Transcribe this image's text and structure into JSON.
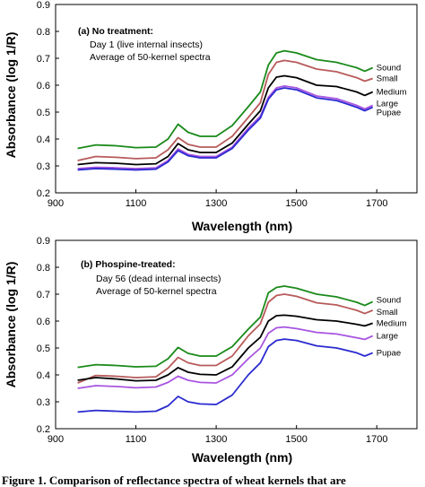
{
  "chart_data": [
    {
      "type": "line",
      "xlim": [
        900,
        1800
      ],
      "ylim": [
        0.2,
        0.9
      ],
      "xticks": [
        "900",
        "1100",
        "1300",
        "1500",
        "1700"
      ],
      "yticks": [
        "0.2",
        "0.3",
        "0.4",
        "0.5",
        "0.6",
        "0.7",
        "0.8",
        "0.9"
      ],
      "xlabel": "Wavelength (nm)",
      "ylabel": "Absorbance (log 1/R)",
      "annotation_title": "(a) No treatment:",
      "annotation_lines": [
        "Day 1 (live internal insects)",
        "Average of 50-kernel spectra"
      ],
      "series": [
        {
          "name": "Sound",
          "color": "#1a8a1a",
          "x": [
            955,
            1000,
            1050,
            1100,
            1150,
            1180,
            1205,
            1230,
            1260,
            1300,
            1340,
            1380,
            1410,
            1430,
            1450,
            1470,
            1500,
            1550,
            1600,
            1650,
            1670,
            1690
          ],
          "y": [
            0.365,
            0.378,
            0.375,
            0.368,
            0.37,
            0.4,
            0.455,
            0.425,
            0.41,
            0.41,
            0.45,
            0.52,
            0.575,
            0.675,
            0.72,
            0.728,
            0.72,
            0.695,
            0.685,
            0.665,
            0.652,
            0.665
          ]
        },
        {
          "name": "Small",
          "color": "#b85a5a",
          "x": [
            955,
            1000,
            1050,
            1100,
            1150,
            1180,
            1205,
            1230,
            1260,
            1300,
            1340,
            1380,
            1410,
            1430,
            1450,
            1470,
            1500,
            1550,
            1600,
            1650,
            1670,
            1690
          ],
          "y": [
            0.32,
            0.335,
            0.332,
            0.327,
            0.33,
            0.36,
            0.405,
            0.38,
            0.37,
            0.37,
            0.41,
            0.48,
            0.535,
            0.64,
            0.685,
            0.692,
            0.685,
            0.66,
            0.65,
            0.628,
            0.615,
            0.625
          ]
        },
        {
          "name": "Medium",
          "color": "#000000",
          "x": [
            955,
            1000,
            1050,
            1100,
            1150,
            1180,
            1205,
            1230,
            1260,
            1300,
            1340,
            1380,
            1410,
            1430,
            1450,
            1470,
            1500,
            1550,
            1600,
            1650,
            1670,
            1690
          ],
          "y": [
            0.305,
            0.312,
            0.31,
            0.305,
            0.308,
            0.335,
            0.383,
            0.36,
            0.35,
            0.35,
            0.385,
            0.455,
            0.505,
            0.59,
            0.63,
            0.635,
            0.628,
            0.6,
            0.595,
            0.575,
            0.562,
            0.575
          ]
        },
        {
          "name": "Large",
          "color": "#a855e0",
          "x": [
            955,
            1000,
            1050,
            1100,
            1150,
            1180,
            1205,
            1230,
            1260,
            1300,
            1340,
            1380,
            1410,
            1430,
            1450,
            1470,
            1500,
            1550,
            1600,
            1650,
            1670,
            1690
          ],
          "y": [
            0.29,
            0.295,
            0.293,
            0.29,
            0.293,
            0.32,
            0.363,
            0.343,
            0.335,
            0.335,
            0.37,
            0.44,
            0.485,
            0.555,
            0.59,
            0.597,
            0.59,
            0.56,
            0.55,
            0.525,
            0.512,
            0.525
          ]
        },
        {
          "name": "Pupae",
          "color": "#2a2ad0",
          "x": [
            955,
            1000,
            1050,
            1100,
            1150,
            1180,
            1205,
            1230,
            1260,
            1300,
            1340,
            1380,
            1410,
            1430,
            1450,
            1470,
            1500,
            1550,
            1600,
            1650,
            1670,
            1690
          ],
          "y": [
            0.285,
            0.29,
            0.288,
            0.285,
            0.288,
            0.315,
            0.357,
            0.338,
            0.33,
            0.33,
            0.365,
            0.433,
            0.478,
            0.548,
            0.583,
            0.59,
            0.583,
            0.553,
            0.543,
            0.518,
            0.505,
            0.518
          ]
        }
      ]
    },
    {
      "type": "line",
      "xlim": [
        900,
        1800
      ],
      "ylim": [
        0.2,
        0.9
      ],
      "xticks": [
        "900",
        "1100",
        "1300",
        "1500",
        "1700"
      ],
      "yticks": [
        "0.2",
        "0.3",
        "0.4",
        "0.5",
        "0.6",
        "0.7",
        "0.8",
        "0.9"
      ],
      "xlabel": "Wavelength (nm)",
      "ylabel": "Absorbance (log 1/R)",
      "annotation_title": "(b) Phospine-treated:",
      "annotation_lines": [
        "Day 56 (dead internal insects)",
        "Average of 50-kernel spectra"
      ],
      "series": [
        {
          "name": "Sound",
          "color": "#1a8a1a",
          "x": [
            955,
            1000,
            1050,
            1100,
            1150,
            1180,
            1205,
            1230,
            1260,
            1300,
            1340,
            1380,
            1410,
            1430,
            1450,
            1470,
            1500,
            1550,
            1600,
            1650,
            1670,
            1690
          ],
          "y": [
            0.428,
            0.438,
            0.435,
            0.43,
            0.432,
            0.46,
            0.502,
            0.48,
            0.47,
            0.47,
            0.505,
            0.57,
            0.615,
            0.705,
            0.725,
            0.73,
            0.722,
            0.7,
            0.69,
            0.67,
            0.658,
            0.672
          ]
        },
        {
          "name": "Small",
          "color": "#b85a5a",
          "x": [
            955,
            1000,
            1050,
            1100,
            1150,
            1180,
            1205,
            1230,
            1260,
            1300,
            1340,
            1380,
            1410,
            1430,
            1450,
            1470,
            1500,
            1550,
            1600,
            1650,
            1670,
            1690
          ],
          "y": [
            0.37,
            0.398,
            0.395,
            0.39,
            0.393,
            0.425,
            0.465,
            0.445,
            0.435,
            0.435,
            0.47,
            0.545,
            0.59,
            0.67,
            0.695,
            0.7,
            0.692,
            0.668,
            0.66,
            0.64,
            0.628,
            0.64
          ]
        },
        {
          "name": "Medium",
          "color": "#000000",
          "x": [
            955,
            1000,
            1050,
            1100,
            1150,
            1180,
            1205,
            1230,
            1260,
            1300,
            1340,
            1380,
            1410,
            1430,
            1450,
            1470,
            1500,
            1550,
            1600,
            1650,
            1670,
            1690
          ],
          "y": [
            0.38,
            0.39,
            0.385,
            0.378,
            0.38,
            0.4,
            0.427,
            0.41,
            0.402,
            0.4,
            0.43,
            0.5,
            0.54,
            0.6,
            0.62,
            0.622,
            0.618,
            0.605,
            0.6,
            0.588,
            0.582,
            0.592
          ]
        },
        {
          "name": "Large",
          "color": "#a855e0",
          "x": [
            955,
            1000,
            1050,
            1100,
            1150,
            1180,
            1205,
            1230,
            1260,
            1300,
            1340,
            1380,
            1410,
            1430,
            1450,
            1470,
            1500,
            1550,
            1600,
            1650,
            1670,
            1690
          ],
          "y": [
            0.35,
            0.36,
            0.357,
            0.352,
            0.355,
            0.372,
            0.395,
            0.38,
            0.372,
            0.37,
            0.4,
            0.46,
            0.5,
            0.555,
            0.575,
            0.578,
            0.572,
            0.558,
            0.552,
            0.538,
            0.532,
            0.545
          ]
        },
        {
          "name": "Pupae",
          "color": "#2a2ad0",
          "x": [
            955,
            1000,
            1050,
            1100,
            1150,
            1180,
            1205,
            1230,
            1260,
            1300,
            1340,
            1380,
            1410,
            1430,
            1450,
            1470,
            1500,
            1550,
            1600,
            1650,
            1670,
            1690
          ],
          "y": [
            0.262,
            0.268,
            0.265,
            0.262,
            0.265,
            0.285,
            0.32,
            0.3,
            0.292,
            0.29,
            0.325,
            0.4,
            0.445,
            0.505,
            0.528,
            0.533,
            0.528,
            0.508,
            0.5,
            0.482,
            0.47,
            0.482
          ]
        }
      ]
    }
  ],
  "caption": "Figure 1. Comparison of reflectance spectra of wheat kernels that are"
}
